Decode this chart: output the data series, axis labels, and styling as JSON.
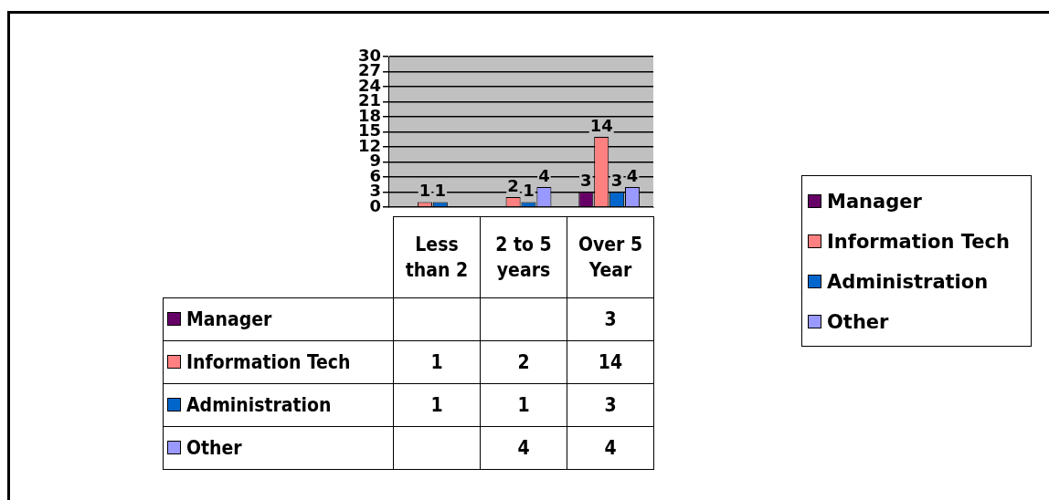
{
  "chart_data": {
    "type": "bar",
    "categories": [
      "Less than 2",
      "2 to 5 years",
      "Over 5 Year"
    ],
    "series": [
      {
        "name": "Manager",
        "color": "#660066",
        "values": [
          null,
          null,
          3
        ],
        "value_labels": [
          null,
          null,
          "3"
        ]
      },
      {
        "name": "Information Tech",
        "color": "#ff8080",
        "values": [
          1,
          2,
          14
        ],
        "value_labels": [
          "1",
          "2",
          "14"
        ]
      },
      {
        "name": "Administration",
        "color": "#0066cc",
        "values": [
          1,
          1,
          3
        ],
        "value_labels": [
          "1",
          "1",
          "3"
        ]
      },
      {
        "name": "Other",
        "color": "#9999ff",
        "values": [
          null,
          4,
          4
        ],
        "value_labels": [
          null,
          "4",
          "4"
        ]
      }
    ],
    "ylim": [
      0,
      30
    ],
    "yticks": [
      0,
      3,
      6,
      9,
      12,
      15,
      18,
      21,
      24,
      27,
      30
    ],
    "grid": "y",
    "legend": "right"
  }
}
